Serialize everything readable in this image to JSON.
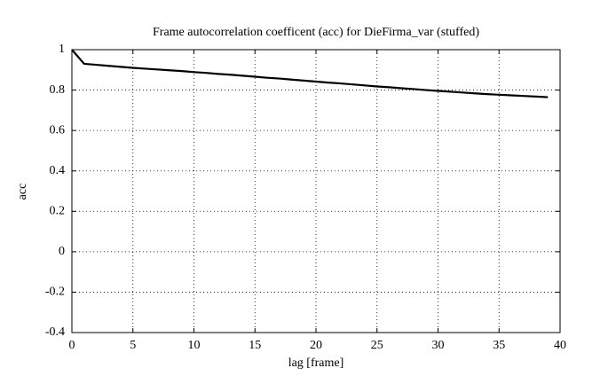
{
  "chart_data": {
    "type": "line",
    "title": "Frame autocorrelation coefficent (acc) for DieFirma_var (stuffed)",
    "x_label": "lag [frame]",
    "y_label": "acc",
    "x": [
      0,
      1,
      2,
      3,
      4,
      5,
      6,
      7,
      8,
      9,
      10,
      11,
      12,
      13,
      14,
      15,
      16,
      17,
      18,
      19,
      20,
      21,
      22,
      23,
      24,
      25,
      26,
      27,
      28,
      29,
      30,
      31,
      32,
      33,
      34,
      35,
      36,
      37,
      38,
      39
    ],
    "values": [
      1.0,
      0.93,
      0.925,
      0.92,
      0.915,
      0.91,
      0.906,
      0.902,
      0.898,
      0.894,
      0.889,
      0.885,
      0.88,
      0.876,
      0.871,
      0.866,
      0.861,
      0.857,
      0.852,
      0.847,
      0.842,
      0.837,
      0.833,
      0.828,
      0.823,
      0.818,
      0.814,
      0.809,
      0.805,
      0.8,
      0.796,
      0.792,
      0.788,
      0.784,
      0.78,
      0.777,
      0.774,
      0.771,
      0.768,
      0.765
    ],
    "color": "#000000",
    "xlim": [
      0,
      40
    ],
    "xticks": [
      0,
      5,
      10,
      15,
      20,
      25,
      30,
      35,
      40
    ],
    "ylim": [
      -0.4,
      1
    ],
    "yticks": [
      -0.4,
      -0.2,
      0,
      0.2,
      0.4,
      0.6,
      0.8,
      1
    ],
    "grid": true
  }
}
